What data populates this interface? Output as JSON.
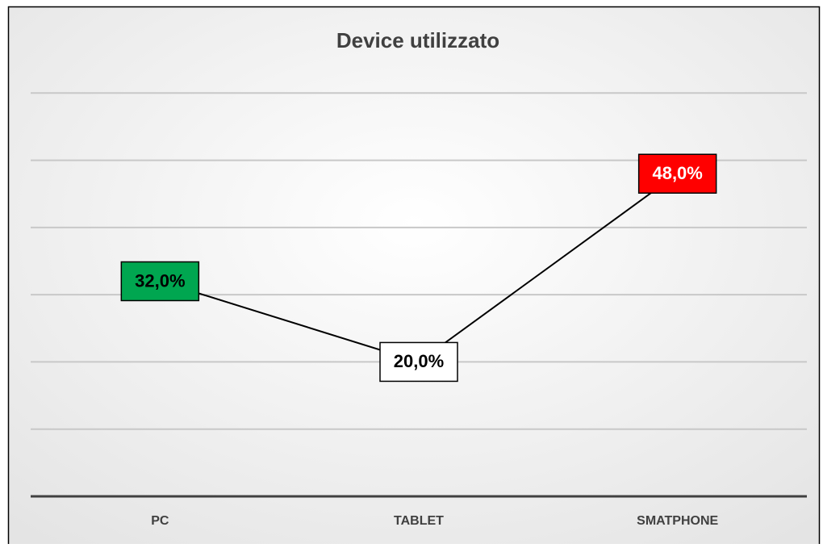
{
  "chart_data": {
    "type": "line",
    "title": "Device utilizzato",
    "categories": [
      "PC",
      "TABLET",
      "SMATPHONE"
    ],
    "series": [
      {
        "name": "Device utilizzato",
        "color": "#000000",
        "values": [
          32,
          20,
          48
        ],
        "value_labels": [
          "32,0%",
          "20,0%",
          "48,0%"
        ],
        "label_colors": [
          "#00a650",
          "#ffffff",
          "#ff0000"
        ],
        "label_text_colors": [
          "#000000",
          "#000000",
          "#ffffff"
        ]
      }
    ],
    "ylim": [
      0,
      70
    ],
    "yticks": [
      0,
      10,
      20,
      30,
      40,
      50,
      60
    ],
    "grid": true
  }
}
